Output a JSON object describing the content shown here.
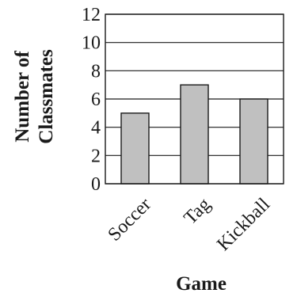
{
  "chart_data": {
    "type": "bar",
    "categories": [
      "Soccer",
      "Tag",
      "Kickball"
    ],
    "values": [
      5,
      7,
      6
    ],
    "title": "",
    "xlabel": "Game",
    "ylabel_lines": [
      "Number of",
      "Classmates"
    ],
    "ylim": [
      0,
      12
    ],
    "yticks": [
      "0",
      "2",
      "4",
      "6",
      "8",
      "10",
      "12"
    ],
    "grid": true,
    "bar_color": "#c0c0c0",
    "line_color": "#1a1a1a"
  }
}
